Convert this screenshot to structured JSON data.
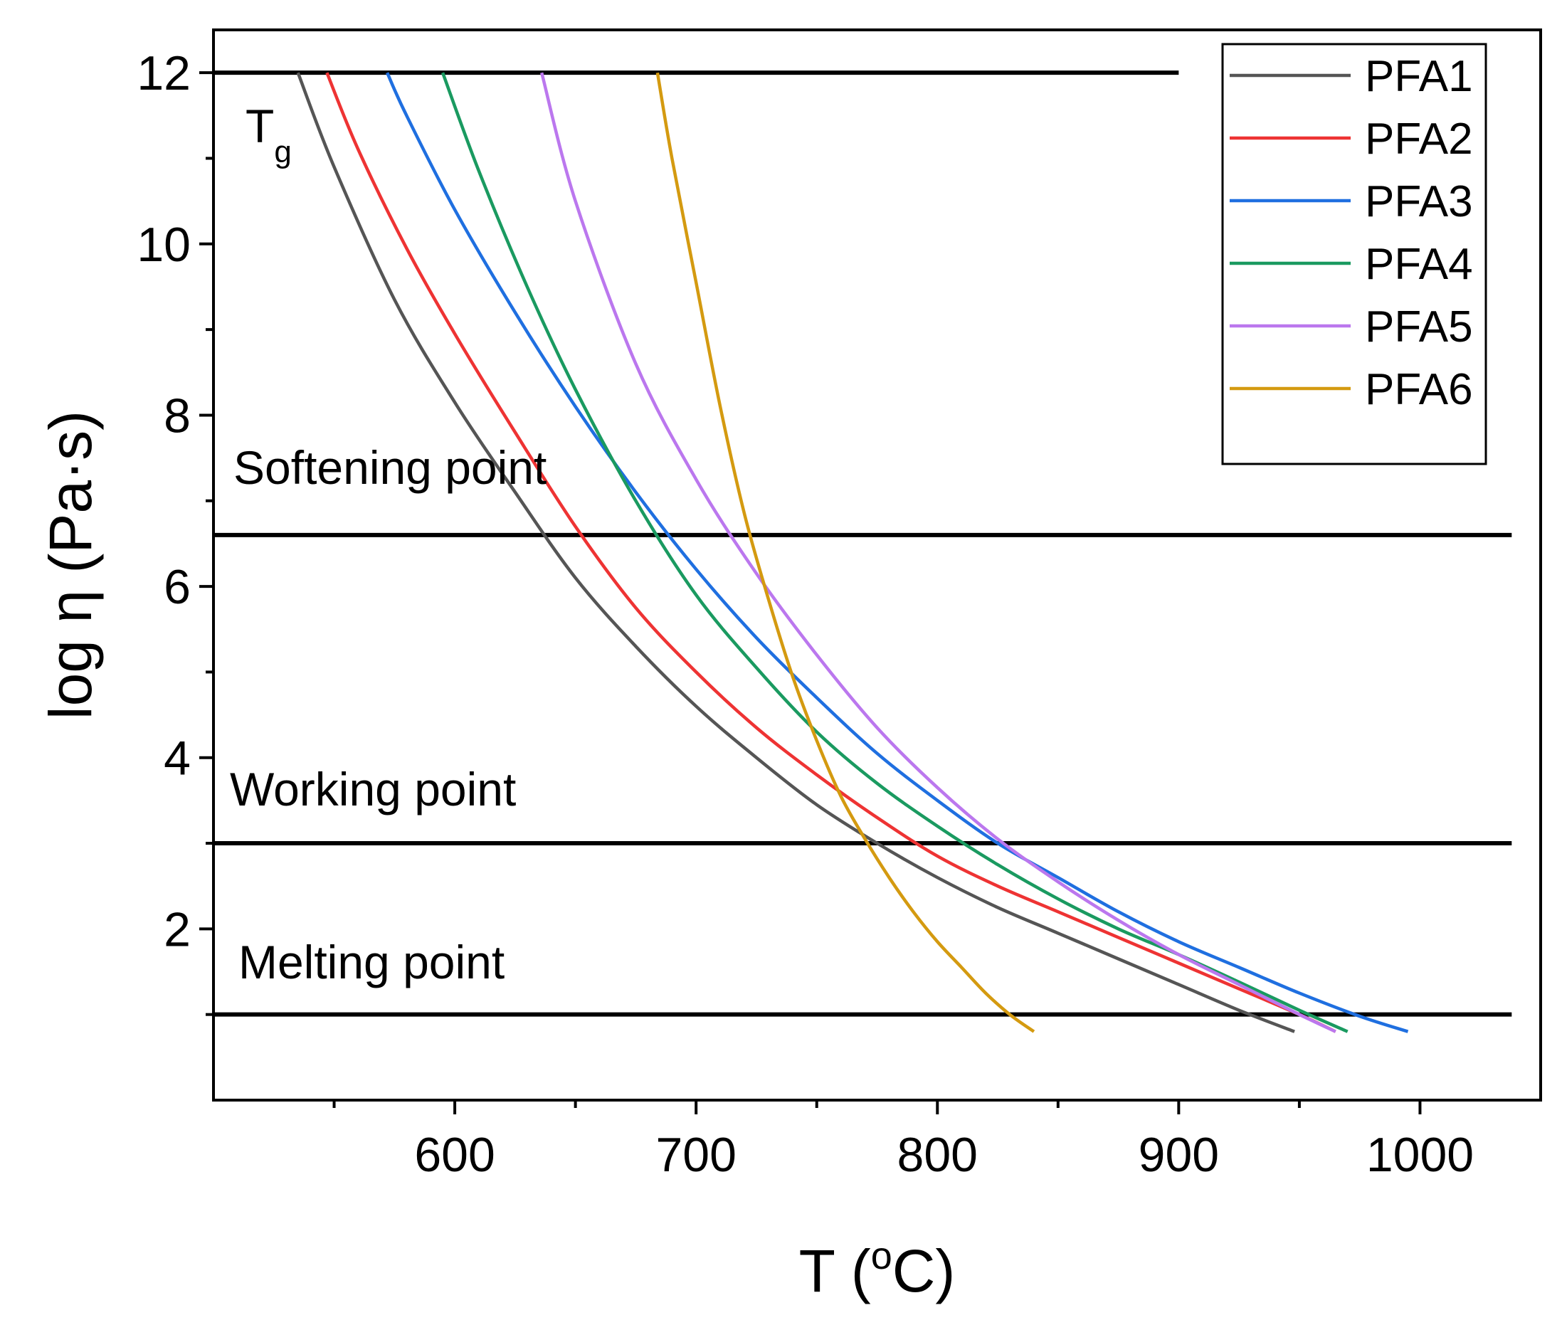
{
  "chart_data": {
    "type": "line",
    "title": "",
    "xlabel": {
      "main": "T (",
      "sup": "o",
      "tail": "C)"
    },
    "ylabel": "log η (Pa·s)",
    "xlim": [
      500,
      1050
    ],
    "ylim": [
      0,
      12.5
    ],
    "xticks": [
      600,
      700,
      800,
      900,
      1000
    ],
    "yticks": [
      2,
      4,
      6,
      8,
      10,
      12
    ],
    "reference_lines": [
      {
        "name": "tg-line",
        "y": 12,
        "x_range": [
          500,
          900
        ],
        "label": "T",
        "label_sub": "g"
      },
      {
        "name": "softening-line",
        "y": 6.6,
        "x_range": [
          500,
          1038
        ],
        "label": "Softening point"
      },
      {
        "name": "working-line",
        "y": 3,
        "x_range": [
          500,
          1038
        ],
        "label": "Working point"
      },
      {
        "name": "melting-line",
        "y": 1,
        "x_range": [
          500,
          1038
        ],
        "label": "Melting point"
      }
    ],
    "legend_position": "top-right",
    "series": [
      {
        "name": "PFA1",
        "color": "#555555",
        "x": [
          535,
          550,
          575,
          600,
          625,
          650,
          675,
          700,
          725,
          750,
          775,
          800,
          825,
          850,
          875,
          900,
          925,
          948
        ],
        "y": [
          12.0,
          10.9,
          9.35,
          8.15,
          7.1,
          6.1,
          5.3,
          4.6,
          4.0,
          3.45,
          3.0,
          2.6,
          2.25,
          1.95,
          1.65,
          1.35,
          1.05,
          0.8
        ]
      },
      {
        "name": "PFA2",
        "color": "#ee3333",
        "x": [
          547,
          560,
          580,
          600,
          625,
          650,
          675,
          700,
          725,
          750,
          775,
          800,
          825,
          850,
          875,
          900,
          925,
          950,
          965
        ],
        "y": [
          12.0,
          11.1,
          9.95,
          8.95,
          7.8,
          6.7,
          5.75,
          5.0,
          4.35,
          3.8,
          3.3,
          2.85,
          2.5,
          2.2,
          1.9,
          1.6,
          1.3,
          1.0,
          0.8
        ]
      },
      {
        "name": "PFA3",
        "color": "#1f6fe0",
        "x": [
          572,
          580,
          600,
          625,
          650,
          675,
          700,
          725,
          750,
          775,
          800,
          825,
          850,
          875,
          900,
          925,
          950,
          975,
          995
        ],
        "y": [
          12.0,
          11.5,
          10.4,
          9.2,
          8.1,
          7.1,
          6.2,
          5.4,
          4.7,
          4.05,
          3.5,
          3.0,
          2.6,
          2.2,
          1.85,
          1.55,
          1.25,
          0.98,
          0.8
        ]
      },
      {
        "name": "PFA4",
        "color": "#1a9a60",
        "x": [
          595,
          610,
          630,
          650,
          675,
          700,
          725,
          750,
          775,
          800,
          825,
          850,
          875,
          900,
          925,
          950,
          970
        ],
        "y": [
          12.0,
          10.85,
          9.5,
          8.3,
          7.0,
          5.9,
          5.05,
          4.3,
          3.7,
          3.2,
          2.75,
          2.35,
          2.0,
          1.7,
          1.38,
          1.05,
          0.8
        ]
      },
      {
        "name": "PFA5",
        "color": "#bb77ee",
        "x": [
          636,
          650,
          675,
          700,
          725,
          750,
          775,
          800,
          825,
          850,
          875,
          900,
          925,
          950,
          965
        ],
        "y": [
          12.0,
          10.5,
          8.6,
          7.25,
          6.15,
          5.2,
          4.35,
          3.65,
          3.05,
          2.55,
          2.1,
          1.7,
          1.35,
          1.0,
          0.8
        ]
      },
      {
        "name": "PFA6",
        "color": "#d49a10",
        "x": [
          684,
          690,
          700,
          710,
          720,
          730,
          740,
          750,
          760,
          770,
          780,
          790,
          800,
          810,
          820,
          830,
          840
        ],
        "y": [
          12.0,
          11.0,
          9.55,
          8.1,
          6.85,
          5.85,
          4.95,
          4.2,
          3.55,
          3.05,
          2.6,
          2.2,
          1.85,
          1.55,
          1.25,
          1.0,
          0.8
        ]
      }
    ]
  }
}
